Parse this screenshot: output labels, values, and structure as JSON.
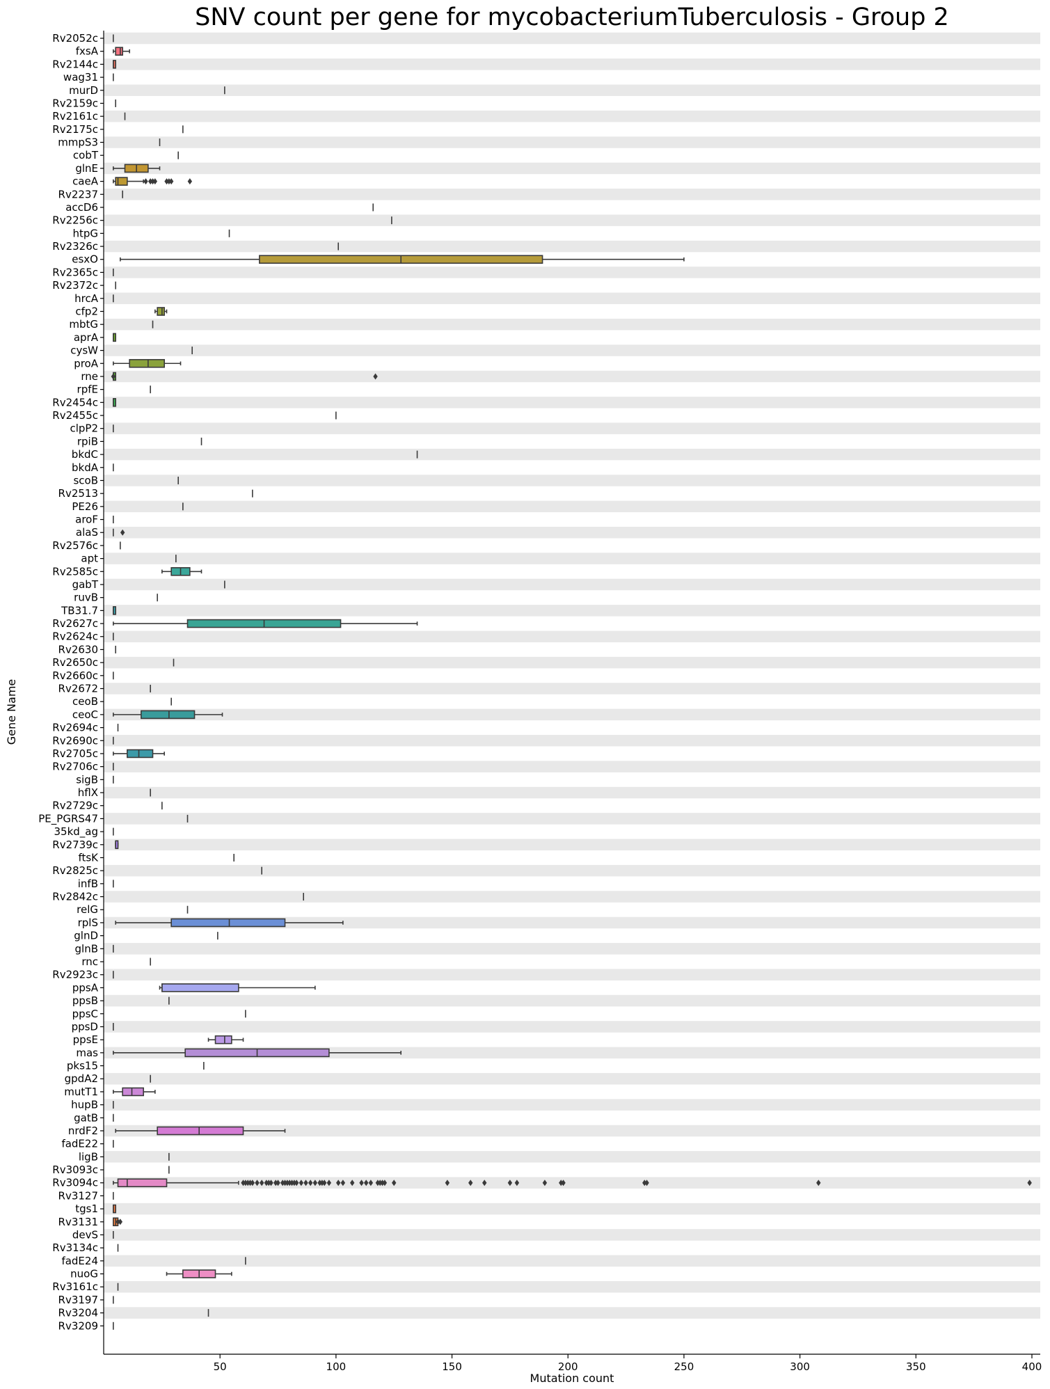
{
  "chart_data": {
    "type": "box",
    "orientation": "horizontal",
    "title": "SNV count per gene for mycobacteriumTuberculosis - Group 2",
    "xlabel": "Mutation count",
    "ylabel": "Gene Name",
    "xlim": [
      0,
      400
    ],
    "xticks": [
      50,
      100,
      150,
      200,
      250,
      300,
      350,
      400
    ],
    "band_color": "#e8e8e8",
    "genes": [
      {
        "name": "Rv2052c",
        "min": 4,
        "q1": 4,
        "median": 4,
        "q3": 4,
        "max": 4,
        "color": "#f77189",
        "fliers": []
      },
      {
        "name": "fxsA",
        "min": 4,
        "q1": 5,
        "median": 7,
        "q3": 8,
        "max": 11,
        "color": "#f47280",
        "fliers": []
      },
      {
        "name": "Rv2144c",
        "min": 4,
        "q1": 4,
        "median": 4,
        "q3": 5,
        "max": 5,
        "color": "#f2745f",
        "fliers": []
      },
      {
        "name": "wag31",
        "min": 4,
        "q1": 4,
        "median": 4,
        "q3": 4,
        "max": 4,
        "color": "#ef7650",
        "fliers": []
      },
      {
        "name": "murD",
        "min": 52,
        "q1": 52,
        "median": 52,
        "q3": 52,
        "max": 52,
        "color": "#e8803c",
        "fliers": []
      },
      {
        "name": "Rv2159c",
        "min": 5,
        "q1": 5,
        "median": 5,
        "q3": 5,
        "max": 5,
        "color": "#e0862f",
        "fliers": []
      },
      {
        "name": "Rv2161c",
        "min": 9,
        "q1": 9,
        "median": 9,
        "q3": 9,
        "max": 9,
        "color": "#d98b32",
        "fliers": []
      },
      {
        "name": "Rv2175c",
        "min": 34,
        "q1": 34,
        "median": 34,
        "q3": 34,
        "max": 34,
        "color": "#d38e32",
        "fliers": []
      },
      {
        "name": "mmpS3",
        "min": 24,
        "q1": 24,
        "median": 24,
        "q3": 24,
        "max": 24,
        "color": "#cd9132",
        "fliers": []
      },
      {
        "name": "cobT",
        "min": 32,
        "q1": 32,
        "median": 32,
        "q3": 32,
        "max": 32,
        "color": "#c79432",
        "fliers": []
      },
      {
        "name": "glnE",
        "min": 4,
        "q1": 9,
        "median": 14,
        "q3": 19,
        "max": 24,
        "color": "#c29632",
        "fliers": []
      },
      {
        "name": "caeA",
        "min": 4,
        "q1": 5,
        "median": 6,
        "q3": 10,
        "max": 17,
        "color": "#bd9932",
        "fliers": [
          18,
          20,
          21,
          22,
          27,
          28,
          29,
          37
        ]
      },
      {
        "name": "Rv2237",
        "min": 8,
        "q1": 8,
        "median": 8,
        "q3": 8,
        "max": 8,
        "color": "#b89b31",
        "fliers": []
      },
      {
        "name": "accD6",
        "min": 116,
        "q1": 116,
        "median": 116,
        "q3": 116,
        "max": 116,
        "color": "#b39d31",
        "fliers": []
      },
      {
        "name": "Rv2256c",
        "min": 124,
        "q1": 124,
        "median": 124,
        "q3": 124,
        "max": 124,
        "color": "#aea031",
        "fliers": []
      },
      {
        "name": "htpG",
        "min": 54,
        "q1": 54,
        "median": 54,
        "q3": 54,
        "max": 54,
        "color": "#a9a231",
        "fliers": []
      },
      {
        "name": "Rv2326c",
        "min": 101,
        "q1": 101,
        "median": 101,
        "q3": 101,
        "max": 101,
        "color": "#a4a431",
        "fliers": []
      },
      {
        "name": "esxO",
        "min": 7,
        "q1": 67,
        "median": 128,
        "q3": 189,
        "max": 250,
        "color": "#b59b3a",
        "fliers": []
      },
      {
        "name": "Rv2365c",
        "min": 4,
        "q1": 4,
        "median": 4,
        "q3": 4,
        "max": 4,
        "color": "#9aa831",
        "fliers": []
      },
      {
        "name": "Rv2372c",
        "min": 5,
        "q1": 5,
        "median": 5,
        "q3": 5,
        "max": 5,
        "color": "#94aa31",
        "fliers": []
      },
      {
        "name": "hrcA",
        "min": 4,
        "q1": 4,
        "median": 4,
        "q3": 4,
        "max": 4,
        "color": "#8ead31",
        "fliers": []
      },
      {
        "name": "cfp2",
        "min": 22,
        "q1": 23,
        "median": 25,
        "q3": 26,
        "max": 27,
        "color": "#97a438",
        "fliers": []
      },
      {
        "name": "mbtG",
        "min": 21,
        "q1": 21,
        "median": 21,
        "q3": 21,
        "max": 21,
        "color": "#80b131",
        "fliers": []
      },
      {
        "name": "aprA",
        "min": 4,
        "q1": 4,
        "median": 4,
        "q3": 5,
        "max": 5,
        "color": "#78b431",
        "fliers": []
      },
      {
        "name": "cysW",
        "min": 38,
        "q1": 38,
        "median": 38,
        "q3": 38,
        "max": 38,
        "color": "#6fb631",
        "fliers": []
      },
      {
        "name": "proA",
        "min": 4,
        "q1": 11,
        "median": 19,
        "q3": 26,
        "max": 33,
        "color": "#8aa23c",
        "fliers": []
      },
      {
        "name": "rne",
        "min": 4,
        "q1": 4,
        "median": 4,
        "q3": 5,
        "max": 5,
        "color": "#5cb933",
        "fliers": [
          4,
          117
        ]
      },
      {
        "name": "rpfE",
        "min": 20,
        "q1": 20,
        "median": 20,
        "q3": 20,
        "max": 20,
        "color": "#4fba3e",
        "fliers": []
      },
      {
        "name": "Rv2454c",
        "min": 4,
        "q1": 4,
        "median": 4,
        "q3": 5,
        "max": 5,
        "color": "#3bba55",
        "fliers": []
      },
      {
        "name": "Rv2455c",
        "min": 100,
        "q1": 100,
        "median": 100,
        "q3": 100,
        "max": 100,
        "color": "#33b968",
        "fliers": []
      },
      {
        "name": "clpP2",
        "min": 4,
        "q1": 4,
        "median": 4,
        "q3": 4,
        "max": 4,
        "color": "#34b872",
        "fliers": []
      },
      {
        "name": "rpiB",
        "min": 42,
        "q1": 42,
        "median": 42,
        "q3": 42,
        "max": 42,
        "color": "#35b779",
        "fliers": []
      },
      {
        "name": "bkdC",
        "min": 135,
        "q1": 135,
        "median": 135,
        "q3": 135,
        "max": 135,
        "color": "#35b680",
        "fliers": []
      },
      {
        "name": "bkdA",
        "min": 4,
        "q1": 4,
        "median": 4,
        "q3": 4,
        "max": 4,
        "color": "#36b586",
        "fliers": []
      },
      {
        "name": "scoB",
        "min": 32,
        "q1": 32,
        "median": 32,
        "q3": 32,
        "max": 32,
        "color": "#36b48b",
        "fliers": []
      },
      {
        "name": "Rv2513",
        "min": 64,
        "q1": 64,
        "median": 64,
        "q3": 64,
        "max": 64,
        "color": "#36b390",
        "fliers": []
      },
      {
        "name": "PE26",
        "min": 34,
        "q1": 34,
        "median": 34,
        "q3": 34,
        "max": 34,
        "color": "#37b295",
        "fliers": []
      },
      {
        "name": "aroF",
        "min": 4,
        "q1": 4,
        "median": 4,
        "q3": 4,
        "max": 4,
        "color": "#37b199",
        "fliers": []
      },
      {
        "name": "alaS",
        "min": 4,
        "q1": 4,
        "median": 4,
        "q3": 4,
        "max": 4,
        "color": "#37b09d",
        "fliers": [
          8
        ]
      },
      {
        "name": "Rv2576c",
        "min": 7,
        "q1": 7,
        "median": 7,
        "q3": 7,
        "max": 7,
        "color": "#38afa1",
        "fliers": []
      },
      {
        "name": "apt",
        "min": 31,
        "q1": 31,
        "median": 31,
        "q3": 31,
        "max": 31,
        "color": "#38aea5",
        "fliers": []
      },
      {
        "name": "Rv2585c",
        "min": 25,
        "q1": 29,
        "median": 33,
        "q3": 37,
        "max": 42,
        "color": "#3ba79a",
        "fliers": []
      },
      {
        "name": "gabT",
        "min": 52,
        "q1": 52,
        "median": 52,
        "q3": 52,
        "max": 52,
        "color": "#39acad",
        "fliers": []
      },
      {
        "name": "ruvB",
        "min": 23,
        "q1": 23,
        "median": 23,
        "q3": 23,
        "max": 23,
        "color": "#39abb1",
        "fliers": []
      },
      {
        "name": "TB31.7",
        "min": 4,
        "q1": 4,
        "median": 4,
        "q3": 5,
        "max": 5,
        "color": "#3aaab5",
        "fliers": []
      },
      {
        "name": "Rv2627c",
        "min": 4,
        "q1": 36,
        "median": 69,
        "q3": 102,
        "max": 135,
        "color": "#3aa595",
        "fliers": []
      },
      {
        "name": "Rv2624c",
        "min": 4,
        "q1": 4,
        "median": 4,
        "q3": 4,
        "max": 4,
        "color": "#3ba8bd",
        "fliers": []
      },
      {
        "name": "Rv2630",
        "min": 5,
        "q1": 5,
        "median": 5,
        "q3": 5,
        "max": 5,
        "color": "#3ca7c2",
        "fliers": []
      },
      {
        "name": "Rv2650c",
        "min": 30,
        "q1": 30,
        "median": 30,
        "q3": 30,
        "max": 30,
        "color": "#3ca6c7",
        "fliers": []
      },
      {
        "name": "Rv2660c",
        "min": 4,
        "q1": 4,
        "median": 4,
        "q3": 4,
        "max": 4,
        "color": "#3da5cc",
        "fliers": []
      },
      {
        "name": "Rv2672",
        "min": 20,
        "q1": 20,
        "median": 20,
        "q3": 20,
        "max": 20,
        "color": "#3ea4d2",
        "fliers": []
      },
      {
        "name": "ceoB",
        "min": 29,
        "q1": 29,
        "median": 29,
        "q3": 29,
        "max": 29,
        "color": "#3fa2d8",
        "fliers": []
      },
      {
        "name": "ceoC",
        "min": 4,
        "q1": 16,
        "median": 28,
        "q3": 39,
        "max": 51,
        "color": "#3a9c9c",
        "fliers": []
      },
      {
        "name": "Rv2694c",
        "min": 6,
        "q1": 6,
        "median": 6,
        "q3": 6,
        "max": 6,
        "color": "#459eed",
        "fliers": []
      },
      {
        "name": "Rv2690c",
        "min": 4,
        "q1": 4,
        "median": 4,
        "q3": 4,
        "max": 4,
        "color": "#509bf5",
        "fliers": []
      },
      {
        "name": "Rv2705c",
        "min": 4,
        "q1": 10,
        "median": 15,
        "q3": 21,
        "max": 26,
        "color": "#3d9aa8",
        "fliers": []
      },
      {
        "name": "Rv2706c",
        "min": 4,
        "q1": 4,
        "median": 4,
        "q3": 4,
        "max": 4,
        "color": "#6c96f4",
        "fliers": []
      },
      {
        "name": "sigB",
        "min": 4,
        "q1": 4,
        "median": 4,
        "q3": 4,
        "max": 4,
        "color": "#7893f4",
        "fliers": []
      },
      {
        "name": "hflX",
        "min": 20,
        "q1": 20,
        "median": 20,
        "q3": 20,
        "max": 20,
        "color": "#8490f4",
        "fliers": []
      },
      {
        "name": "Rv2729c",
        "min": 25,
        "q1": 25,
        "median": 25,
        "q3": 25,
        "max": 25,
        "color": "#8e8df4",
        "fliers": []
      },
      {
        "name": "PE_PGRS47",
        "min": 36,
        "q1": 36,
        "median": 36,
        "q3": 36,
        "max": 36,
        "color": "#988af4",
        "fliers": []
      },
      {
        "name": "35kd_ag",
        "min": 4,
        "q1": 4,
        "median": 4,
        "q3": 4,
        "max": 4,
        "color": "#a287f4",
        "fliers": []
      },
      {
        "name": "Rv2739c",
        "min": 5,
        "q1": 5,
        "median": 5,
        "q3": 6,
        "max": 6,
        "color": "#ab84f4",
        "fliers": []
      },
      {
        "name": "ftsK",
        "min": 56,
        "q1": 56,
        "median": 56,
        "q3": 56,
        "max": 56,
        "color": "#b481f4",
        "fliers": []
      },
      {
        "name": "Rv2825c",
        "min": 68,
        "q1": 68,
        "median": 68,
        "q3": 68,
        "max": 68,
        "color": "#bc7ef4",
        "fliers": []
      },
      {
        "name": "infB",
        "min": 4,
        "q1": 4,
        "median": 4,
        "q3": 4,
        "max": 4,
        "color": "#c47af4",
        "fliers": []
      },
      {
        "name": "Rv2842c",
        "min": 86,
        "q1": 86,
        "median": 86,
        "q3": 86,
        "max": 86,
        "color": "#cc76f4",
        "fliers": []
      },
      {
        "name": "relG",
        "min": 36,
        "q1": 36,
        "median": 36,
        "q3": 36,
        "max": 36,
        "color": "#d472f4",
        "fliers": []
      },
      {
        "name": "rplS",
        "min": 5,
        "q1": 29,
        "median": 54,
        "q3": 78,
        "max": 103,
        "color": "#6b8fd6",
        "fliers": []
      },
      {
        "name": "glnD",
        "min": 49,
        "q1": 49,
        "median": 49,
        "q3": 49,
        "max": 49,
        "color": "#e26af1",
        "fliers": []
      },
      {
        "name": "glnB",
        "min": 4,
        "q1": 4,
        "median": 4,
        "q3": 4,
        "max": 4,
        "color": "#e868ea",
        "fliers": []
      },
      {
        "name": "rnc",
        "min": 20,
        "q1": 20,
        "median": 20,
        "q3": 20,
        "max": 20,
        "color": "#ed68e3",
        "fliers": []
      },
      {
        "name": "Rv2923c",
        "min": 4,
        "q1": 4,
        "median": 4,
        "q3": 4,
        "max": 4,
        "color": "#f268db",
        "fliers": []
      },
      {
        "name": "ppsA",
        "min": 24,
        "q1": 25,
        "median": 25,
        "q3": 58,
        "max": 91,
        "color": "#a6a8ef",
        "fliers": []
      },
      {
        "name": "ppsB",
        "min": 28,
        "q1": 28,
        "median": 28,
        "q3": 28,
        "max": 28,
        "color": "#f56ac7",
        "fliers": []
      },
      {
        "name": "ppsC",
        "min": 61,
        "q1": 61,
        "median": 61,
        "q3": 61,
        "max": 61,
        "color": "#f66cbe",
        "fliers": []
      },
      {
        "name": "ppsD",
        "min": 4,
        "q1": 4,
        "median": 4,
        "q3": 4,
        "max": 4,
        "color": "#f66db5",
        "fliers": []
      },
      {
        "name": "ppsE",
        "min": 45,
        "q1": 48,
        "median": 52,
        "q3": 55,
        "max": 60,
        "color": "#bb9ae6",
        "fliers": []
      },
      {
        "name": "mas",
        "min": 4,
        "q1": 35,
        "median": 66,
        "q3": 97,
        "max": 128,
        "color": "#b48ed6",
        "fliers": []
      },
      {
        "name": "pks15",
        "min": 43,
        "q1": 43,
        "median": 43,
        "q3": 43,
        "max": 43,
        "color": "#f773a0",
        "fliers": []
      },
      {
        "name": "gpdA2",
        "min": 20,
        "q1": 20,
        "median": 20,
        "q3": 20,
        "max": 20,
        "color": "#f77495",
        "fliers": []
      },
      {
        "name": "mutT1",
        "min": 4,
        "q1": 8,
        "median": 12,
        "q3": 17,
        "max": 22,
        "color": "#cc88d8",
        "fliers": []
      },
      {
        "name": "hupB",
        "min": 4,
        "q1": 4,
        "median": 4,
        "q3": 4,
        "max": 4,
        "color": "#f77682",
        "fliers": []
      },
      {
        "name": "gatB",
        "min": 4,
        "q1": 4,
        "median": 4,
        "q3": 4,
        "max": 4,
        "color": "#f77778",
        "fliers": []
      },
      {
        "name": "nrdF2",
        "min": 5,
        "q1": 23,
        "median": 41,
        "q3": 60,
        "max": 78,
        "color": "#d47bd4",
        "fliers": []
      },
      {
        "name": "fadE22",
        "min": 4,
        "q1": 4,
        "median": 4,
        "q3": 4,
        "max": 4,
        "color": "#f77870",
        "fliers": []
      },
      {
        "name": "ligB",
        "min": 28,
        "q1": 28,
        "median": 28,
        "q3": 28,
        "max": 28,
        "color": "#f77a68",
        "fliers": []
      },
      {
        "name": "Rv3093c",
        "min": 28,
        "q1": 28,
        "median": 28,
        "q3": 28,
        "max": 28,
        "color": "#f77b60",
        "fliers": []
      },
      {
        "name": "Rv3094c",
        "min": 4,
        "q1": 6,
        "median": 10,
        "q3": 27,
        "max": 58,
        "color": "#e48ac6",
        "fliers": [
          60,
          61,
          62,
          63,
          64,
          66,
          68,
          70,
          71,
          72,
          74,
          75,
          77,
          78,
          79,
          80,
          81,
          82,
          83,
          85,
          87,
          89,
          91,
          93,
          94,
          95,
          97,
          101,
          103,
          107,
          111,
          113,
          115,
          118,
          119,
          120,
          121,
          125,
          148,
          158,
          164,
          175,
          178,
          190,
          197,
          198,
          233,
          234,
          308,
          399
        ]
      },
      {
        "name": "Rv3127",
        "min": 4,
        "q1": 4,
        "median": 4,
        "q3": 4,
        "max": 4,
        "color": "#f77e50",
        "fliers": []
      },
      {
        "name": "tgs1",
        "min": 4,
        "q1": 4,
        "median": 4,
        "q3": 5,
        "max": 5,
        "color": "#f77f48",
        "fliers": []
      },
      {
        "name": "Rv3131",
        "min": 4,
        "q1": 4,
        "median": 5,
        "q3": 6,
        "max": 6,
        "color": "#f68140",
        "fliers": [
          6,
          7
        ]
      },
      {
        "name": "devS",
        "min": 4,
        "q1": 4,
        "median": 4,
        "q3": 4,
        "max": 4,
        "color": "#f58238",
        "fliers": []
      },
      {
        "name": "Rv3134c",
        "min": 6,
        "q1": 6,
        "median": 6,
        "q3": 6,
        "max": 6,
        "color": "#f48430",
        "fliers": []
      },
      {
        "name": "fadE24",
        "min": 61,
        "q1": 61,
        "median": 61,
        "q3": 61,
        "max": 61,
        "color": "#f38628",
        "fliers": []
      },
      {
        "name": "nuoG",
        "min": 27,
        "q1": 34,
        "median": 41,
        "q3": 48,
        "max": 55,
        "color": "#ee8ec4",
        "fliers": []
      },
      {
        "name": "Rv3161c",
        "min": 6,
        "q1": 6,
        "median": 6,
        "q3": 6,
        "max": 6,
        "color": "#f18a18",
        "fliers": []
      },
      {
        "name": "Rv3197",
        "min": 4,
        "q1": 4,
        "median": 4,
        "q3": 4,
        "max": 4,
        "color": "#f08c10",
        "fliers": []
      },
      {
        "name": "Rv3204",
        "min": 45,
        "q1": 45,
        "median": 45,
        "q3": 45,
        "max": 45,
        "color": "#ef8e08",
        "fliers": []
      },
      {
        "name": "Rv3209",
        "min": 4,
        "q1": 4,
        "median": 4,
        "q3": 4,
        "max": 4,
        "color": "#ee9000",
        "fliers": []
      }
    ]
  }
}
